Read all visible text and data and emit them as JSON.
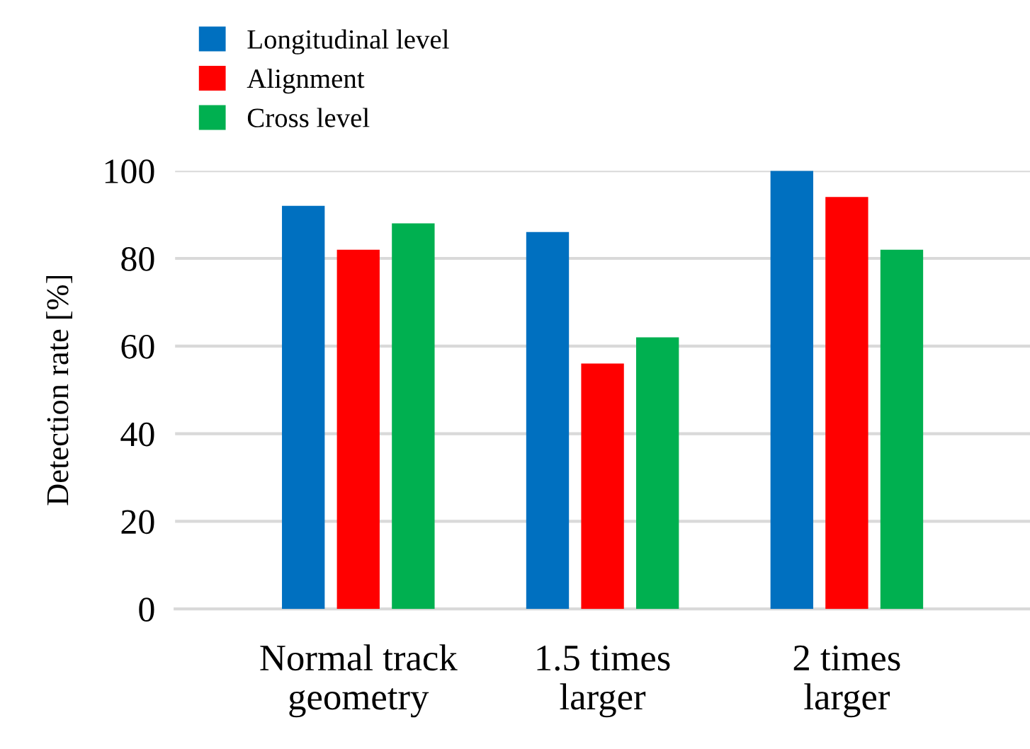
{
  "chart_data": {
    "type": "bar",
    "ylabel": "Detection rate [%]",
    "categories": [
      "Normal track\ngeometry",
      "1.5 times\nlarger",
      "2 times\nlarger"
    ],
    "series": [
      {
        "name": "Longitudinal level",
        "color": "#0070c0",
        "values": [
          92,
          86,
          100
        ]
      },
      {
        "name": "Alignment",
        "color": "#ff0000",
        "values": [
          82,
          56,
          94
        ]
      },
      {
        "name": "Cross level",
        "color": "#00b050",
        "values": [
          88,
          62,
          82
        ]
      }
    ],
    "ylim": [
      0,
      100
    ],
    "yticks": [
      0,
      20,
      40,
      60,
      80,
      100
    ],
    "grid": "y",
    "legend": "top left"
  }
}
